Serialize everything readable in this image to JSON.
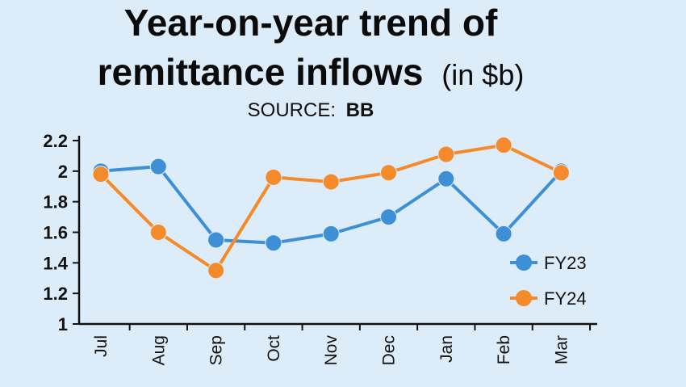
{
  "chart_data": {
    "type": "line",
    "title_line1": "Year-on-year trend of",
    "title_line2": "remittance inflows",
    "title_unit": "(in $b)",
    "source_label": "SOURCE:",
    "source_value": "BB",
    "categories": [
      "Jul",
      "Aug",
      "Sep",
      "Oct",
      "Nov",
      "Dec",
      "Jan",
      "Feb",
      "Mar"
    ],
    "y_ticks": [
      "2.2",
      "2",
      "1.8",
      "1.6",
      "1.4",
      "1.2",
      "1"
    ],
    "ylim": [
      1,
      2.2
    ],
    "series": [
      {
        "name": "FY23",
        "color": "#3d8fd6",
        "values": [
          2.0,
          2.03,
          1.55,
          1.53,
          1.59,
          1.7,
          1.95,
          1.59,
          2.0
        ]
      },
      {
        "name": "FY24",
        "color": "#f58a2a",
        "values": [
          1.98,
          1.6,
          1.35,
          1.96,
          1.93,
          1.99,
          2.11,
          2.17,
          1.99
        ]
      }
    ]
  }
}
